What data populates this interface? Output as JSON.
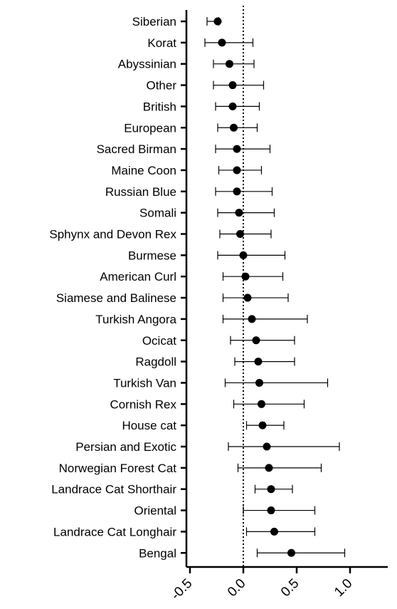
{
  "chart_data": {
    "type": "scatter",
    "subtype": "forest-plot",
    "title": "",
    "xlabel": "",
    "ylabel": "",
    "xlim": [
      -0.5,
      1.2
    ],
    "x_ticks": [
      "-0.5",
      "0.0",
      "0.5",
      "1.0"
    ],
    "x_tick_values": [
      -0.5,
      0.0,
      0.5,
      1.0
    ],
    "reference_line": 0.0,
    "reference_line_style": "dotted",
    "grid": false,
    "categories": [
      "Siberian",
      "Korat",
      "Abyssinian",
      "Other",
      "British",
      "European",
      "Sacred Birman",
      "Maine Coon",
      "Russian Blue",
      "Somali",
      "Sphynx and Devon Rex",
      "Burmese",
      "American Curl",
      "Siamese and Balinese",
      "Turkish Angora",
      "Ocicat",
      "Ragdoll",
      "Turkish Van",
      "Cornish Rex",
      "House cat",
      "Persian and Exotic",
      "Norwegian Forest Cat",
      "Landrace Cat Shorthair",
      "Oriental",
      "Landrace Cat Longhair",
      "Bengal"
    ],
    "estimates": [
      -0.24,
      -0.2,
      -0.13,
      -0.1,
      -0.1,
      -0.09,
      -0.06,
      -0.06,
      -0.06,
      -0.04,
      -0.03,
      0.0,
      0.02,
      0.04,
      0.08,
      0.12,
      0.14,
      0.15,
      0.17,
      0.18,
      0.22,
      0.24,
      0.26,
      0.26,
      0.29,
      0.45
    ],
    "ci_lower": [
      -0.34,
      -0.36,
      -0.28,
      -0.28,
      -0.26,
      -0.24,
      -0.26,
      -0.23,
      -0.26,
      -0.24,
      -0.22,
      -0.24,
      -0.19,
      -0.19,
      -0.19,
      -0.12,
      -0.08,
      -0.17,
      -0.09,
      0.03,
      -0.14,
      -0.05,
      0.11,
      0.0,
      0.03,
      0.13
    ],
    "ci_upper": [
      -0.23,
      0.09,
      0.1,
      0.19,
      0.15,
      0.13,
      0.25,
      0.17,
      0.27,
      0.29,
      0.26,
      0.39,
      0.37,
      0.42,
      0.6,
      0.48,
      0.48,
      0.79,
      0.57,
      0.38,
      0.9,
      0.73,
      0.46,
      0.67,
      0.67,
      0.95
    ]
  }
}
